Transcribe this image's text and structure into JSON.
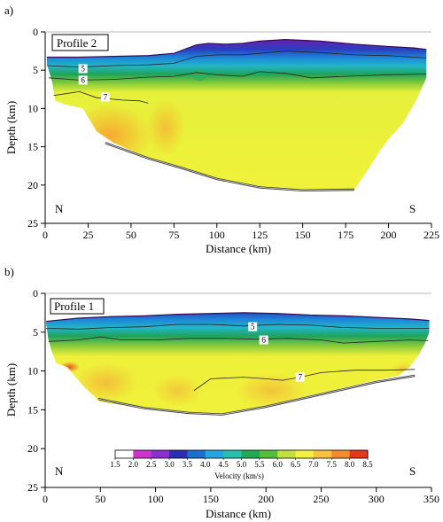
{
  "chart_data": [
    {
      "panel": "a)",
      "type": "heatmap",
      "profile_label": "Profile 2",
      "xlabel": "Distance (km)",
      "ylabel": "Depth (km)",
      "xlim": [
        0,
        225
      ],
      "ylim": [
        0,
        25
      ],
      "y_inverted": true,
      "x_ticks": [
        0,
        25,
        50,
        75,
        100,
        125,
        150,
        175,
        200,
        225
      ],
      "y_ticks": [
        0,
        5,
        10,
        15,
        20,
        25
      ],
      "left_label": "N",
      "right_label": "S",
      "top_surface": [
        [
          1,
          3.3
        ],
        [
          20,
          3.3
        ],
        [
          40,
          3.2
        ],
        [
          60,
          3.1
        ],
        [
          75,
          2.8
        ],
        [
          82,
          2.2
        ],
        [
          88,
          1.7
        ],
        [
          95,
          1.5
        ],
        [
          105,
          1.6
        ],
        [
          115,
          1.5
        ],
        [
          125,
          1.2
        ],
        [
          140,
          1.0
        ],
        [
          160,
          1.2
        ],
        [
          180,
          1.6
        ],
        [
          200,
          1.9
        ],
        [
          215,
          2.1
        ],
        [
          222,
          2.3
        ]
      ],
      "bottom_surface": [
        [
          1,
          4.2
        ],
        [
          4,
          6.5
        ],
        [
          6,
          9.0
        ],
        [
          12,
          9.5
        ],
        [
          22,
          10.0
        ],
        [
          30,
          13.0
        ],
        [
          40,
          14.5
        ],
        [
          50,
          15.5
        ],
        [
          60,
          16.5
        ],
        [
          75,
          17.5
        ],
        [
          90,
          18.6
        ],
        [
          100,
          19.3
        ],
        [
          115,
          20.0
        ],
        [
          130,
          20.5
        ],
        [
          150,
          20.8
        ],
        [
          170,
          20.7
        ],
        [
          180,
          20.6
        ],
        [
          188,
          18.0
        ],
        [
          195,
          15.5
        ],
        [
          200,
          14.0
        ],
        [
          208,
          12.0
        ],
        [
          212,
          10.5
        ],
        [
          216,
          9.0
        ],
        [
          219,
          7.5
        ],
        [
          222,
          6.0
        ]
      ],
      "interface": [
        [
          35,
          14.5
        ],
        [
          60,
          16.5
        ],
        [
          80,
          17.8
        ],
        [
          100,
          19.2
        ],
        [
          125,
          20.3
        ],
        [
          150,
          20.7
        ],
        [
          180,
          20.6
        ]
      ],
      "contours": [
        {
          "level": "5",
          "label_at": [
            22,
            4.8
          ],
          "points": [
            [
              1,
              4.4
            ],
            [
              20,
              4.6
            ],
            [
              40,
              4.4
            ],
            [
              60,
              4.3
            ],
            [
              75,
              4.1
            ],
            [
              88,
              3.2
            ],
            [
              100,
              3.0
            ],
            [
              115,
              3.0
            ],
            [
              125,
              2.8
            ],
            [
              140,
              2.5
            ],
            [
              160,
              2.7
            ],
            [
              180,
              3.0
            ],
            [
              200,
              3.1
            ],
            [
              222,
              3.4
            ]
          ]
        },
        {
          "level": "6",
          "label_at": [
            22,
            6.3
          ],
          "points": [
            [
              2,
              6.0
            ],
            [
              20,
              6.3
            ],
            [
              40,
              6.2
            ],
            [
              60,
              5.9
            ],
            [
              75,
              5.8
            ],
            [
              88,
              5.3
            ],
            [
              100,
              5.6
            ],
            [
              115,
              5.8
            ],
            [
              125,
              5.2
            ],
            [
              140,
              5.4
            ],
            [
              155,
              6.0
            ],
            [
              175,
              5.8
            ],
            [
              200,
              5.6
            ],
            [
              222,
              5.5
            ]
          ]
        },
        {
          "level": "7",
          "label_at": [
            35,
            8.5
          ],
          "points": [
            [
              5,
              8.3
            ],
            [
              20,
              7.8
            ],
            [
              30,
              8.6
            ],
            [
              45,
              8.9
            ],
            [
              55,
              9.0
            ],
            [
              60,
              9.3
            ]
          ]
        }
      ]
    },
    {
      "panel": "b)",
      "type": "heatmap",
      "profile_label": "Profile 1",
      "xlabel": "Distance (km)",
      "ylabel": "Depth (km)",
      "xlim": [
        0,
        350
      ],
      "ylim": [
        0,
        25
      ],
      "y_inverted": true,
      "x_ticks": [
        0,
        50,
        100,
        150,
        200,
        250,
        300,
        350
      ],
      "y_ticks": [
        0,
        5,
        10,
        15,
        20,
        25
      ],
      "left_label": "N",
      "right_label": "S",
      "top_surface": [
        [
          1,
          3.6
        ],
        [
          30,
          3.2
        ],
        [
          60,
          3.0
        ],
        [
          90,
          2.9
        ],
        [
          120,
          2.7
        ],
        [
          150,
          2.6
        ],
        [
          180,
          2.5
        ],
        [
          210,
          2.6
        ],
        [
          240,
          2.8
        ],
        [
          270,
          2.9
        ],
        [
          300,
          3.1
        ],
        [
          330,
          3.3
        ],
        [
          348,
          3.5
        ]
      ],
      "bottom_surface": [
        [
          1,
          4.0
        ],
        [
          3,
          6.0
        ],
        [
          6,
          7.5
        ],
        [
          10,
          9.0
        ],
        [
          20,
          9.5
        ],
        [
          35,
          12.0
        ],
        [
          50,
          14.0
        ],
        [
          80,
          14.6
        ],
        [
          110,
          15.1
        ],
        [
          140,
          15.6
        ],
        [
          160,
          15.6
        ],
        [
          190,
          14.9
        ],
        [
          220,
          13.8
        ],
        [
          260,
          12.5
        ],
        [
          290,
          11.5
        ],
        [
          320,
          10.6
        ],
        [
          330,
          9.5
        ],
        [
          338,
          8.0
        ],
        [
          344,
          6.5
        ],
        [
          348,
          5.0
        ]
      ],
      "interface": [
        [
          48,
          13.6
        ],
        [
          90,
          14.8
        ],
        [
          130,
          15.4
        ],
        [
          160,
          15.6
        ],
        [
          200,
          14.6
        ],
        [
          250,
          13.0
        ],
        [
          300,
          11.4
        ],
        [
          335,
          10.6
        ]
      ],
      "contours": [
        {
          "level": "5",
          "label_at": [
            188,
            4.3
          ],
          "points": [
            [
              1,
              4.5
            ],
            [
              30,
              4.6
            ],
            [
              60,
              4.4
            ],
            [
              90,
              4.3
            ],
            [
              120,
              4.0
            ],
            [
              150,
              4.0
            ],
            [
              180,
              4.2
            ],
            [
              210,
              4.0
            ],
            [
              240,
              4.1
            ],
            [
              270,
              4.4
            ],
            [
              300,
              4.5
            ],
            [
              348,
              4.5
            ]
          ]
        },
        {
          "level": "6",
          "label_at": [
            198,
            6.0
          ],
          "points": [
            [
              3,
              6.2
            ],
            [
              30,
              6.0
            ],
            [
              50,
              5.6
            ],
            [
              70,
              6.0
            ],
            [
              100,
              6.0
            ],
            [
              130,
              5.8
            ],
            [
              160,
              5.8
            ],
            [
              190,
              5.9
            ],
            [
              220,
              5.8
            ],
            [
              250,
              6.0
            ],
            [
              270,
              6.4
            ],
            [
              300,
              6.2
            ],
            [
              330,
              6.0
            ],
            [
              347,
              6.1
            ]
          ]
        },
        {
          "level": "7",
          "label_at": [
            231,
            10.8
          ],
          "points": [
            [
              135,
              12.5
            ],
            [
              150,
              11.0
            ],
            [
              180,
              10.8
            ],
            [
              200,
              11.0
            ],
            [
              215,
              11.2
            ],
            [
              231,
              10.8
            ],
            [
              250,
              10.2
            ],
            [
              280,
              9.9
            ],
            [
              310,
              9.9
            ],
            [
              335,
              9.8
            ]
          ]
        }
      ]
    }
  ],
  "colorbar": {
    "title": "Velocity (km/s)",
    "ticks": [
      "1.5",
      "2.0",
      "2.5",
      "3.0",
      "3.5",
      "4.0",
      "4.5",
      "5.0",
      "5.5",
      "6.0",
      "6.5",
      "7.0",
      "7.5",
      "8.0",
      "8.5"
    ],
    "colors": [
      "#ffffff",
      "#e8208e",
      "#cc33cc",
      "#8a2fd0",
      "#2b2fb8",
      "#1c6fd0",
      "#22a7e0",
      "#22c2b0",
      "#1faa55",
      "#55bd3a",
      "#c2e23a",
      "#f2f23a",
      "#f8c23a",
      "#f68a2c",
      "#e8351c"
    ]
  }
}
